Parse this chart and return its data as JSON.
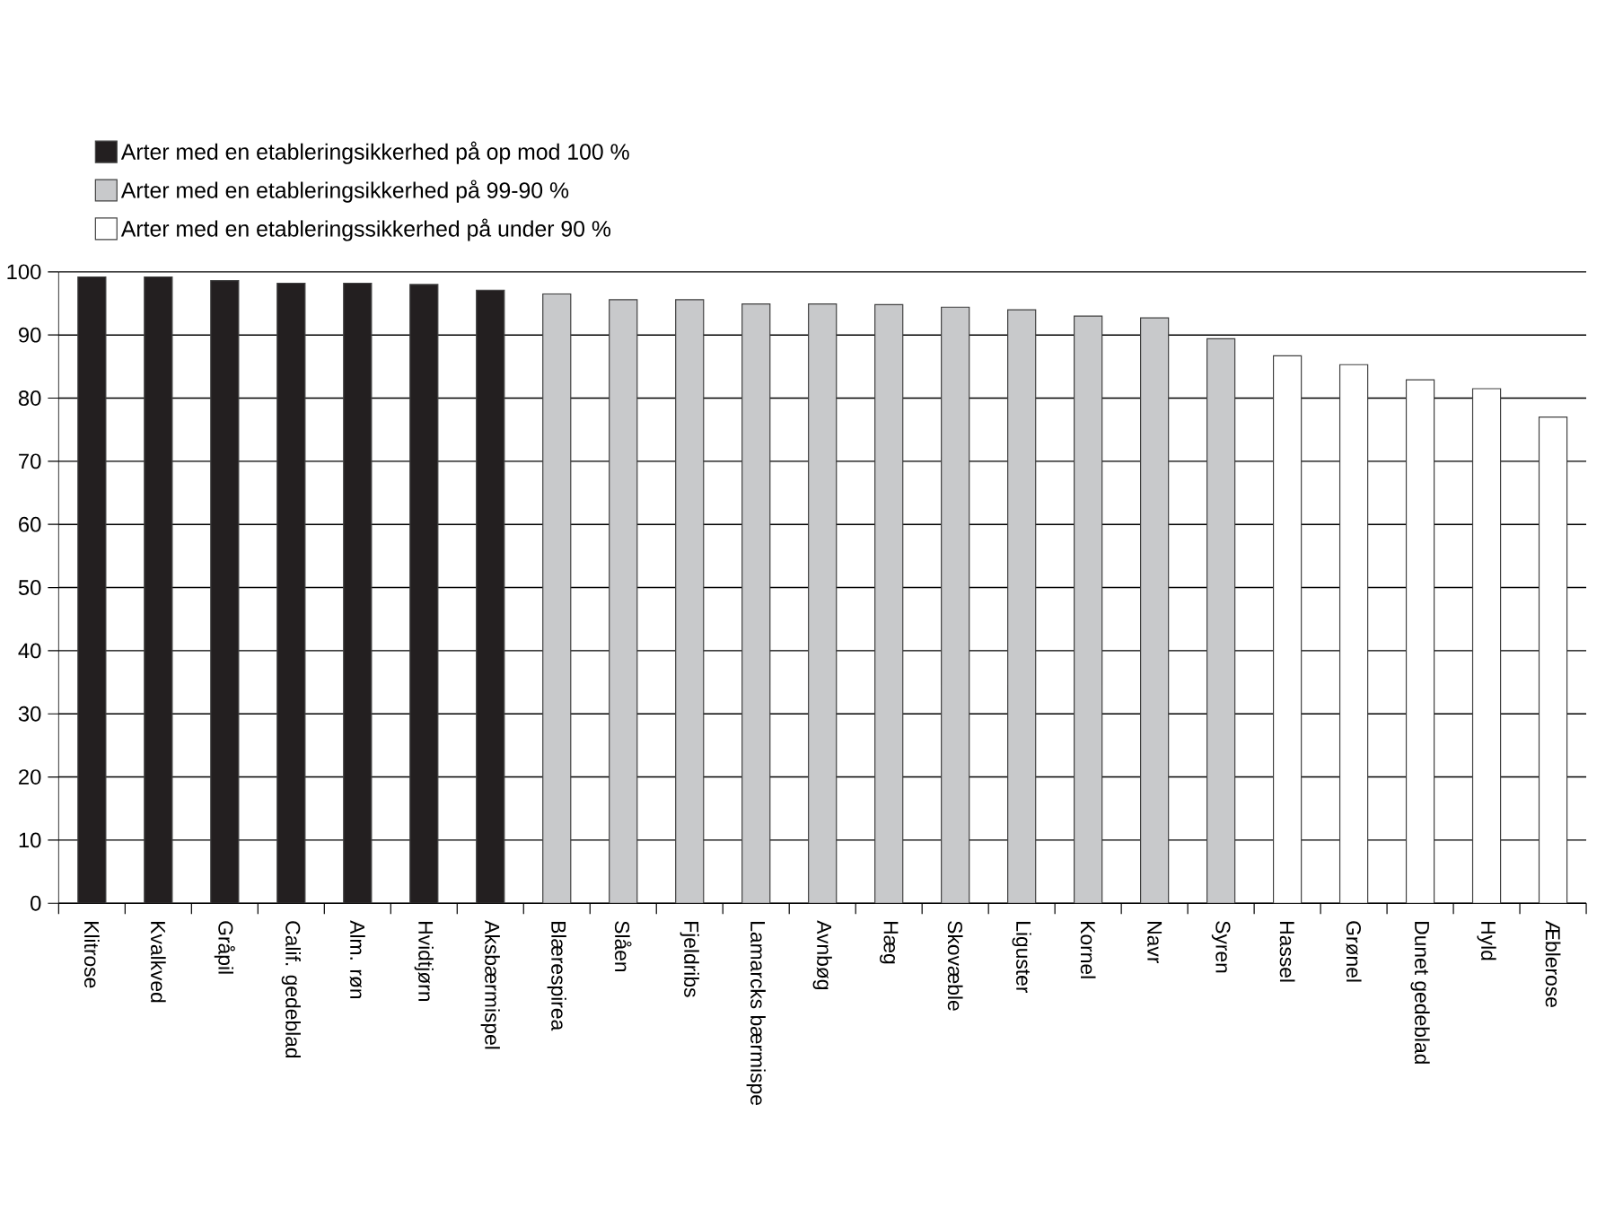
{
  "chart_data": {
    "type": "bar",
    "categories": [
      "Klitrose",
      "Kvalkved",
      "Gråpil",
      "Calif. gedeblad",
      "Alm. røn",
      "Hvidtjørn",
      "Aksbærmispel",
      "Blærespirea",
      "Slåen",
      "Fjeldribs",
      "Lamarcks bærmispe",
      "Avnbøg",
      "Hæg",
      "Skovæble",
      "Liguster",
      "Kornel",
      "Navr",
      "Syren",
      "Hassel",
      "Grønel",
      "Dunet gedeblad",
      "Hyld",
      "Æblerose"
    ],
    "series": [
      {
        "name": "Arter med en etableringsikkerhed på op mod 100 %",
        "color": "#231f20",
        "values": [
          99.2,
          99.2,
          98.6,
          98.2,
          98.2,
          98.0,
          97.1,
          null,
          null,
          null,
          null,
          null,
          null,
          null,
          null,
          null,
          null,
          null,
          null,
          null,
          null,
          null,
          null
        ]
      },
      {
        "name": "Arter med en etableringsikkerhed på 99-90 %",
        "color": "#c8c9cb",
        "values": [
          null,
          null,
          null,
          null,
          null,
          null,
          null,
          96.5,
          95.6,
          95.6,
          94.9,
          94.9,
          94.8,
          94.4,
          94.0,
          93.0,
          92.7,
          89.4,
          null,
          null,
          null,
          null,
          null
        ]
      },
      {
        "name": "Arter med en etableringssikkerhed på under 90 %",
        "color": "#ffffff",
        "values": [
          null,
          null,
          null,
          null,
          null,
          null,
          null,
          null,
          null,
          null,
          null,
          null,
          null,
          null,
          null,
          null,
          null,
          null,
          86.7,
          85.3,
          82.9,
          81.5,
          77.0
        ]
      }
    ],
    "ylim": [
      0,
      100
    ],
    "yticks": [
      0,
      10,
      20,
      30,
      40,
      50,
      60,
      70,
      80,
      90,
      100
    ],
    "grid": "y",
    "legend": "top left"
  }
}
